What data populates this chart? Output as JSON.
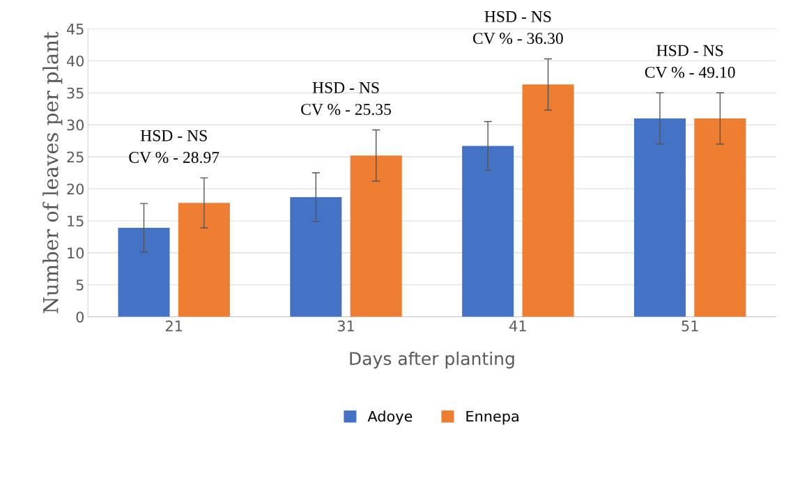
{
  "chart_data": {
    "type": "bar",
    "xlabel": "Days after planting",
    "ylabel": "Number of leaves per plant",
    "categories": [
      "21",
      "31",
      "41",
      "51"
    ],
    "series": [
      {
        "name": "Adoye",
        "color": "#4472c4",
        "values": [
          13.9,
          18.7,
          26.7,
          31.0
        ],
        "errors": [
          3.8,
          3.8,
          3.8,
          4.0
        ]
      },
      {
        "name": "Ennepa",
        "color": "#ed7d31",
        "values": [
          17.8,
          25.2,
          36.3,
          31.0
        ],
        "errors": [
          3.9,
          4.0,
          4.0,
          4.0
        ]
      }
    ],
    "ylim": [
      0,
      45
    ],
    "yticks": [
      0,
      5,
      10,
      15,
      20,
      25,
      30,
      35,
      40,
      45
    ],
    "grid": "y",
    "legend": "bottom",
    "annotations": [
      "HSD - NS\nCV % - 28.97",
      "HSD - NS\nCV % - 25.35",
      "HSD - NS\nCV % - 36.30",
      "HSD - NS\nCV % - 49.10"
    ]
  }
}
